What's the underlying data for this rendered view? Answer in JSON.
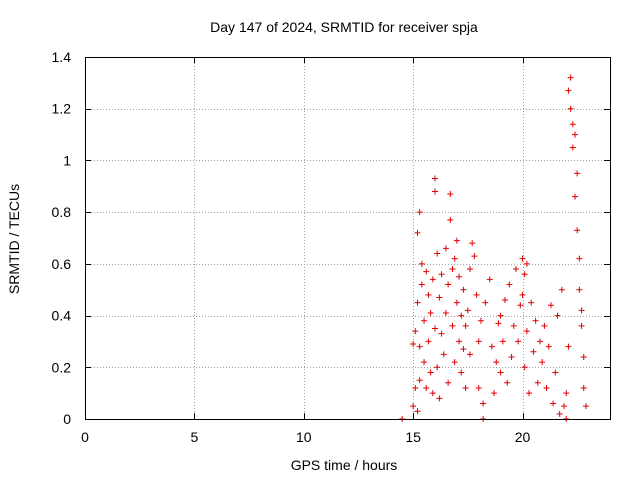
{
  "chart_data": {
    "type": "scatter",
    "title": "Day 147 of 2024, SRMTID for receiver spja",
    "xlabel": "GPS time / hours",
    "ylabel": "SRMTID / TECUs",
    "xlim": [
      0,
      24
    ],
    "ylim": [
      0,
      1.4
    ],
    "xticks": [
      0,
      5,
      10,
      15,
      20
    ],
    "xtick_labels": [
      "0",
      "5",
      "10",
      "15",
      "20"
    ],
    "yticks": [
      0,
      0.2,
      0.4,
      0.6,
      0.8,
      1,
      1.2,
      1.4
    ],
    "ytick_labels": [
      "0",
      "0.2",
      "0.4",
      "0.6",
      "0.8",
      "1",
      "1.2",
      "1.4"
    ],
    "grid": true,
    "marker": "+",
    "series": [
      {
        "name": "SRMTID",
        "color": "#e00000",
        "x": [
          14.5,
          15.0,
          15.0,
          15.1,
          15.1,
          15.2,
          15.2,
          15.2,
          15.3,
          15.3,
          15.3,
          15.4,
          15.4,
          15.5,
          15.5,
          15.6,
          15.6,
          15.7,
          15.7,
          15.8,
          15.8,
          15.9,
          15.9,
          16.0,
          16.0,
          16.0,
          16.1,
          16.1,
          16.2,
          16.2,
          16.3,
          16.3,
          16.4,
          16.5,
          16.5,
          16.6,
          16.6,
          16.7,
          16.7,
          16.8,
          16.8,
          16.9,
          16.9,
          17.0,
          17.0,
          17.1,
          17.1,
          17.2,
          17.2,
          17.3,
          17.3,
          17.4,
          17.4,
          17.5,
          17.6,
          17.6,
          17.7,
          17.8,
          17.9,
          18.0,
          18.0,
          18.1,
          18.2,
          18.2,
          18.3,
          18.5,
          18.6,
          18.7,
          18.8,
          18.9,
          19.0,
          19.0,
          19.1,
          19.2,
          19.3,
          19.4,
          19.5,
          19.6,
          19.7,
          19.8,
          19.9,
          20.0,
          20.0,
          20.1,
          20.1,
          20.2,
          20.2,
          20.3,
          20.4,
          20.5,
          20.6,
          20.7,
          20.8,
          20.9,
          21.0,
          21.1,
          21.2,
          21.3,
          21.4,
          21.5,
          21.6,
          21.7,
          21.8,
          21.9,
          22.0,
          22.0,
          22.1,
          22.1,
          22.2,
          22.2,
          22.3,
          22.3,
          22.4,
          22.4,
          22.5,
          22.5,
          22.6,
          22.6,
          22.7,
          22.7,
          22.8,
          22.8,
          22.9
        ],
        "y": [
          0.0,
          0.05,
          0.29,
          0.12,
          0.34,
          0.03,
          0.72,
          0.45,
          0.8,
          0.28,
          0.15,
          0.52,
          0.6,
          0.22,
          0.38,
          0.12,
          0.57,
          0.3,
          0.48,
          0.18,
          0.41,
          0.1,
          0.54,
          0.93,
          0.88,
          0.35,
          0.64,
          0.2,
          0.47,
          0.08,
          0.56,
          0.33,
          0.25,
          0.41,
          0.66,
          0.14,
          0.52,
          0.77,
          0.87,
          0.58,
          0.36,
          0.62,
          0.22,
          0.69,
          0.45,
          0.3,
          0.55,
          0.18,
          0.4,
          0.27,
          0.5,
          0.12,
          0.36,
          0.42,
          0.25,
          0.58,
          0.68,
          0.63,
          0.48,
          0.3,
          0.12,
          0.38,
          0.0,
          0.06,
          0.45,
          0.54,
          0.28,
          0.1,
          0.22,
          0.37,
          0.18,
          0.4,
          0.3,
          0.46,
          0.14,
          0.52,
          0.24,
          0.36,
          0.58,
          0.3,
          0.44,
          0.62,
          0.48,
          0.2,
          0.56,
          0.34,
          0.6,
          0.1,
          0.45,
          0.26,
          0.38,
          0.14,
          0.3,
          0.22,
          0.36,
          0.12,
          0.28,
          0.44,
          0.06,
          0.18,
          0.4,
          0.02,
          0.5,
          0.05,
          0.1,
          0.0,
          0.28,
          1.27,
          1.2,
          1.32,
          1.05,
          1.14,
          0.86,
          1.1,
          0.95,
          0.73,
          0.62,
          0.5,
          0.36,
          0.42,
          0.24,
          0.12,
          0.05
        ]
      }
    ]
  }
}
